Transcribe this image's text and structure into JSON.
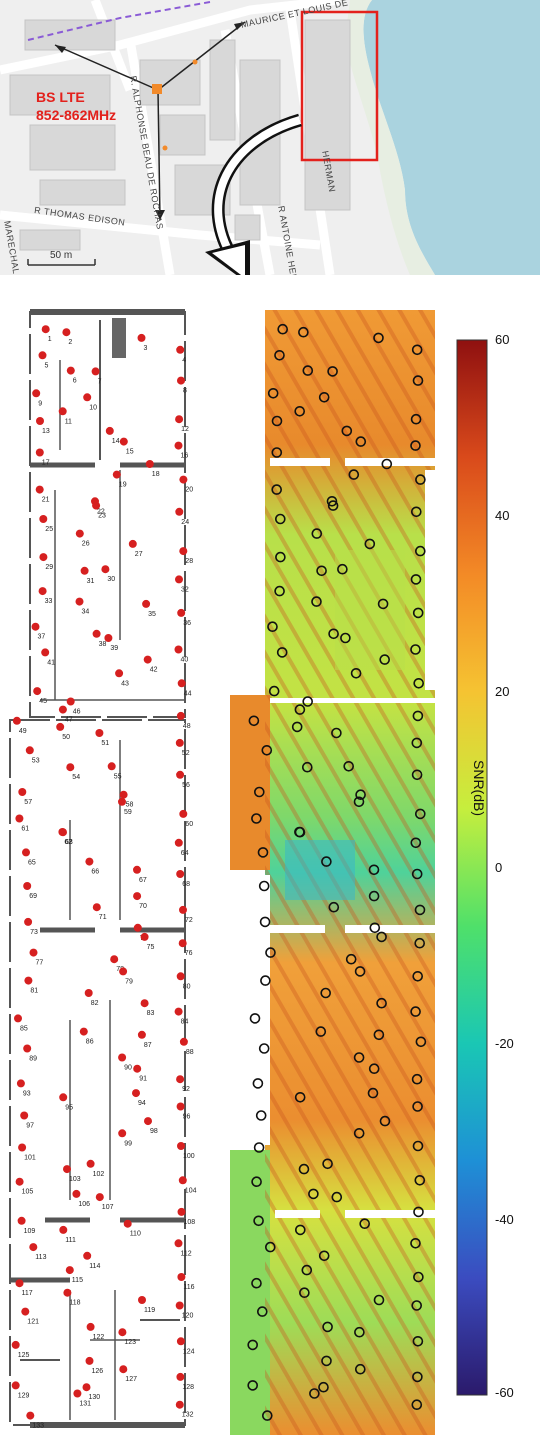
{
  "map": {
    "bs_label_line1": "BS LTE",
    "bs_label_line2": "852-862MHz",
    "streets": [
      "MAURICE ET LOUIS DE",
      "R. ALPHONSE BEAU DE ROCHAS",
      "R THOMAS EDISON",
      "R ANTOINE HEN",
      "MARECHAL",
      "HERMAN"
    ],
    "scale_label": "50 m",
    "colors": {
      "bs_text": "#e3211c",
      "highlight_box": "#e3211c",
      "water": "#aad3df",
      "building": "#d9d9d9",
      "road": "#ffffff"
    }
  },
  "floorplan": {
    "labels": [
      "1",
      "2",
      "3",
      "4",
      "5",
      "6",
      "7",
      "8",
      "9",
      "10",
      "11",
      "12",
      "13",
      "14",
      "15",
      "16",
      "17",
      "18",
      "19",
      "20",
      "21",
      "22",
      "23",
      "24",
      "25",
      "26",
      "27",
      "28",
      "29",
      "30",
      "31",
      "32",
      "33",
      "34",
      "35",
      "36",
      "37",
      "38",
      "39",
      "40",
      "41",
      "42",
      "43",
      "44",
      "45",
      "46",
      "47",
      "48",
      "49",
      "50",
      "51",
      "52",
      "53",
      "54",
      "55",
      "56",
      "57",
      "58",
      "59",
      "60",
      "61",
      "62",
      "63",
      "64",
      "65",
      "66",
      "67",
      "68",
      "69",
      "70",
      "71",
      "72",
      "73",
      "74",
      "75",
      "76",
      "77",
      "78",
      "79",
      "80",
      "81",
      "82",
      "83",
      "84",
      "85",
      "86",
      "87",
      "88",
      "89",
      "90",
      "91",
      "92",
      "93",
      "94",
      "95",
      "96",
      "97",
      "98",
      "99",
      "100",
      "101",
      "102",
      "103",
      "104",
      "105",
      "106",
      "107",
      "108",
      "109",
      "110",
      "111",
      "112",
      "113",
      "114",
      "115",
      "116",
      "117",
      "118",
      "119",
      "120",
      "121",
      "122",
      "123",
      "124",
      "125",
      "126",
      "127",
      "128",
      "129",
      "130",
      "131",
      "132",
      "133"
    ],
    "marker_color": "#d62020"
  },
  "colorbar": {
    "title": "SNR(dB)",
    "ticks": [
      "60",
      "40",
      "20",
      "0",
      "-20",
      "-40",
      "-60"
    ],
    "range": [
      -60,
      60
    ],
    "colormap": [
      "#2b1a6b",
      "#3b4cc0",
      "#1e90d6",
      "#1ac7b4",
      "#4fe06a",
      "#c6ee3d",
      "#f5c332",
      "#f38a26",
      "#d94a1b",
      "#8f1010"
    ]
  }
}
